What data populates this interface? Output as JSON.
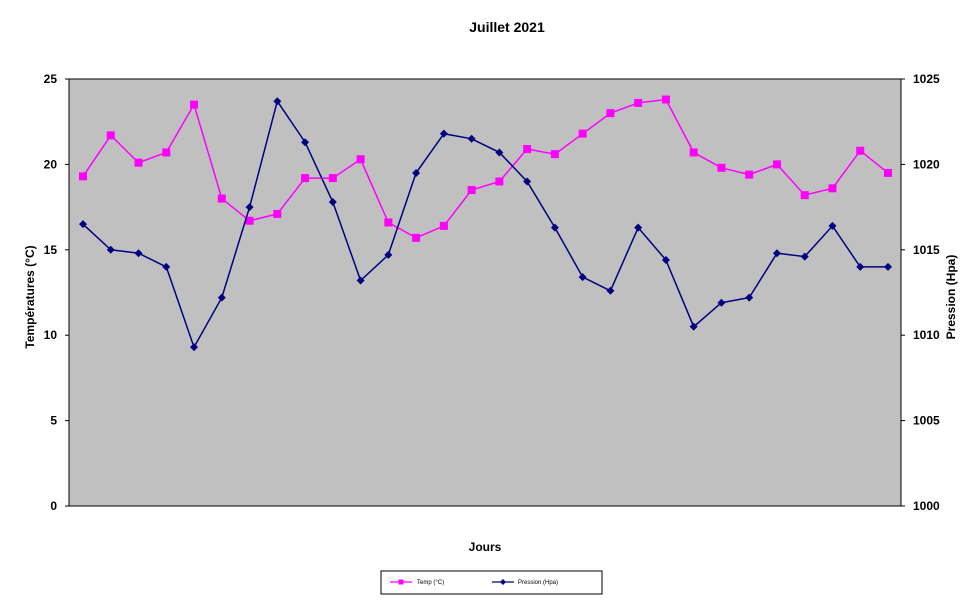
{
  "chart_data": {
    "type": "line",
    "title": "Juillet 2021",
    "xlabel": "Jours",
    "ylabel_left": "Températures (°C)",
    "ylabel_right": "Pression (Hpa)",
    "ylim_left": [
      0,
      25
    ],
    "ylim_right": [
      1000,
      1025
    ],
    "yticks_left": [
      0,
      5,
      10,
      15,
      20,
      25
    ],
    "yticks_right": [
      1000,
      1005,
      1010,
      1015,
      1020,
      1025
    ],
    "grid": false,
    "plot_background": "#c0c0c0",
    "legend_position": "bottom",
    "x": [
      1,
      2,
      3,
      4,
      5,
      6,
      7,
      8,
      9,
      10,
      11,
      12,
      13,
      14,
      15,
      16,
      17,
      18,
      19,
      20,
      21,
      22,
      23,
      24,
      25,
      26,
      27,
      28,
      29,
      30
    ],
    "series": [
      {
        "name": "Temp (°C)",
        "axis": "left",
        "color": "#ff00ff",
        "marker": "square",
        "values": [
          19.3,
          21.7,
          20.1,
          20.7,
          23.5,
          18.0,
          16.7,
          17.1,
          19.2,
          19.2,
          20.3,
          16.6,
          15.7,
          16.4,
          18.5,
          19.0,
          20.9,
          20.6,
          21.8,
          23.0,
          23.6,
          23.8,
          20.7,
          19.8,
          19.4,
          20.0,
          18.2,
          18.6,
          20.8,
          19.5
        ]
      },
      {
        "name": "Pression (Hpa)",
        "axis": "right",
        "color": "#000080",
        "marker": "diamond",
        "values": [
          1016.5,
          1015.0,
          1014.8,
          1014.0,
          1009.3,
          1012.2,
          1017.5,
          1023.7,
          1021.3,
          1017.8,
          1013.2,
          1014.7,
          1019.5,
          1021.8,
          1021.5,
          1020.7,
          1019.0,
          1016.3,
          1013.4,
          1012.6,
          1016.3,
          1014.4,
          1010.5,
          1011.9,
          1012.2,
          1014.8,
          1014.6,
          1016.4,
          1014.0,
          1014.0
        ]
      }
    ]
  }
}
